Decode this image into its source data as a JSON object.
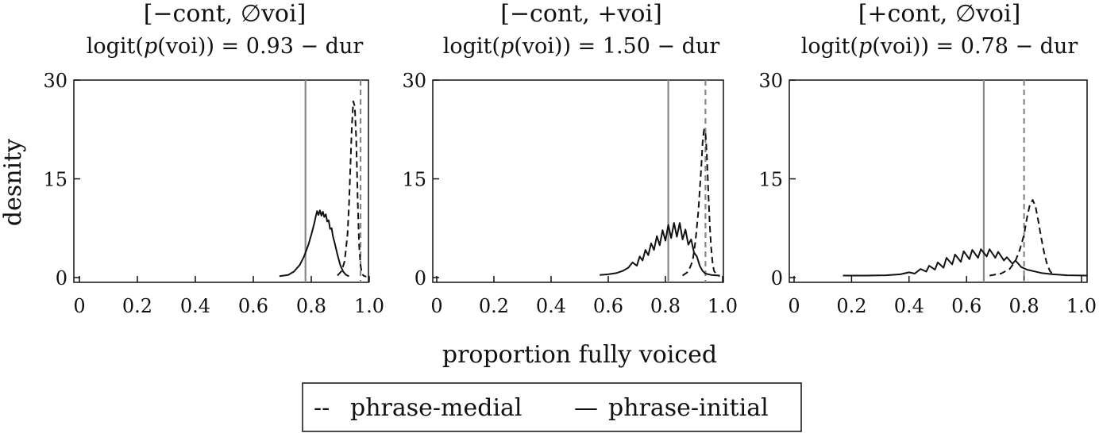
{
  "figure": {
    "ylabel": "desnity",
    "xlabel": "proportion fully voiced",
    "legend": {
      "placement": "bottom-center",
      "items": [
        {
          "symbol": "--",
          "label": "phrase-medial",
          "style": "dashed"
        },
        {
          "symbol": "—",
          "label": "phrase-initial",
          "style": "solid"
        }
      ]
    },
    "colors": {
      "curve": "#111111",
      "dashed_reference_line": "#888888",
      "solid_reference_line": "#888888"
    }
  },
  "chart_data": [
    {
      "type": "line",
      "title": "[−cont, ∅voi]",
      "subtitle": "logit(p(voi)) = 0.93 − dur",
      "subtitle_parts": {
        "lhs": "logit(",
        "p": "p",
        "rest": "(voi)) = 0.93 − dur"
      },
      "xlim": [
        0,
        1.0
      ],
      "ylim": [
        0,
        30
      ],
      "xticks": [
        0,
        0.2,
        0.4,
        0.6,
        0.8,
        1.0
      ],
      "xtick_labels": [
        "0",
        "0.2",
        "0.4",
        "0.6",
        "0.8",
        "1.0"
      ],
      "yticks": [
        0,
        15,
        30
      ],
      "ytick_labels": [
        "0",
        "15",
        "30"
      ],
      "vlines": [
        {
          "x": 0.78,
          "style": "solid",
          "series": "phrase-initial"
        },
        {
          "x": 0.97,
          "style": "dashed",
          "series": "phrase-medial"
        }
      ],
      "series": [
        {
          "name": "phrase-medial",
          "style": "dashed",
          "x": [
            0.89,
            0.905,
            0.915,
            0.925,
            0.93,
            0.935,
            0.94,
            0.945,
            0.95,
            0.955,
            0.96,
            0.965,
            0.97,
            0.975,
            0.98,
            0.985,
            0.99
          ],
          "y": [
            0.3,
            1.0,
            2.5,
            6.5,
            11.0,
            17.0,
            23.0,
            26.8,
            26.0,
            21.0,
            12.0,
            5.0,
            1.8,
            0.6,
            0.3,
            0.2,
            0.15
          ]
        },
        {
          "name": "phrase-initial",
          "style": "solid",
          "x": [
            0.69,
            0.72,
            0.74,
            0.76,
            0.775,
            0.79,
            0.8,
            0.81,
            0.815,
            0.82,
            0.825,
            0.83,
            0.835,
            0.84,
            0.845,
            0.85,
            0.855,
            0.86,
            0.865,
            0.87,
            0.875,
            0.88,
            0.89,
            0.9,
            0.91,
            0.92,
            0.93
          ],
          "y": [
            0.2,
            0.4,
            0.9,
            1.9,
            3.2,
            5.0,
            6.5,
            8.2,
            9.2,
            10.1,
            9.5,
            10.2,
            9.4,
            10.0,
            9.2,
            9.6,
            8.5,
            8.7,
            7.4,
            7.5,
            6.2,
            5.4,
            3.5,
            1.9,
            0.9,
            0.4,
            0.2
          ]
        }
      ]
    },
    {
      "type": "line",
      "title": "[−cont, +voi]",
      "subtitle": "logit(p(voi)) = 1.50 − dur",
      "subtitle_parts": {
        "lhs": "logit(",
        "p": "p",
        "rest": "(voi)) = 1.50 − dur"
      },
      "xlim": [
        0,
        1.0
      ],
      "ylim": [
        0,
        30
      ],
      "xticks": [
        0,
        0.2,
        0.4,
        0.6,
        0.8,
        1.0
      ],
      "xtick_labels": [
        "0",
        "0.2",
        "0.4",
        "0.6",
        "0.8",
        "1.0"
      ],
      "yticks": [
        0,
        15,
        30
      ],
      "ytick_labels": [
        "0",
        "15",
        "30"
      ],
      "vlines": [
        {
          "x": 0.81,
          "style": "solid",
          "series": "phrase-initial"
        },
        {
          "x": 0.94,
          "style": "dashed",
          "series": "phrase-medial"
        }
      ],
      "series": [
        {
          "name": "phrase-medial",
          "style": "dashed",
          "x": [
            0.86,
            0.88,
            0.895,
            0.905,
            0.915,
            0.925,
            0.93,
            0.935,
            0.94,
            0.945,
            0.95,
            0.955,
            0.96,
            0.965,
            0.97,
            0.98,
            0.99
          ],
          "y": [
            0.3,
            0.9,
            2.5,
            5.5,
            10.0,
            16.5,
            20.5,
            22.5,
            22.0,
            18.5,
            13.0,
            8.0,
            4.5,
            2.2,
            1.0,
            0.4,
            0.2
          ]
        },
        {
          "name": "phrase-initial",
          "style": "solid",
          "x": [
            0.57,
            0.6,
            0.63,
            0.65,
            0.67,
            0.685,
            0.7,
            0.71,
            0.72,
            0.73,
            0.74,
            0.75,
            0.76,
            0.77,
            0.78,
            0.79,
            0.8,
            0.81,
            0.82,
            0.83,
            0.84,
            0.85,
            0.86,
            0.87,
            0.88,
            0.89,
            0.9,
            0.91,
            0.92,
            0.93,
            0.94,
            0.96,
            0.99
          ],
          "y": [
            0.4,
            0.5,
            0.7,
            1.0,
            1.5,
            2.3,
            1.8,
            3.2,
            2.6,
            4.2,
            3.4,
            5.2,
            4.2,
            6.3,
            4.9,
            7.2,
            5.6,
            8.0,
            6.0,
            8.3,
            6.2,
            8.3,
            5.8,
            7.3,
            5.0,
            5.8,
            3.8,
            3.2,
            1.8,
            1.0,
            0.6,
            0.4,
            0.3
          ]
        }
      ]
    },
    {
      "type": "line",
      "title": "[+cont, ∅voi]",
      "subtitle": "logit(p(voi)) = 0.78 − dur",
      "subtitle_parts": {
        "lhs": "logit(",
        "p": "p",
        "rest": "(voi)) = 0.78 − dur"
      },
      "xlim": [
        0,
        1.0
      ],
      "ylim": [
        0,
        30
      ],
      "xticks": [
        0,
        0.2,
        0.4,
        0.6,
        0.8,
        1.0
      ],
      "xtick_labels": [
        "0",
        "0.2",
        "0.4",
        "0.6",
        "0.8",
        "1.0"
      ],
      "yticks": [
        0,
        15,
        30
      ],
      "ytick_labels": [
        "0",
        "15",
        "30"
      ],
      "vlines": [
        {
          "x": 0.66,
          "style": "solid",
          "series": "phrase-initial"
        },
        {
          "x": 0.8,
          "style": "dashed",
          "series": "phrase-medial"
        }
      ],
      "series": [
        {
          "name": "phrase-medial",
          "style": "dashed",
          "x": [
            0.68,
            0.72,
            0.75,
            0.77,
            0.785,
            0.8,
            0.81,
            0.82,
            0.83,
            0.84,
            0.85,
            0.86,
            0.87,
            0.88,
            0.89,
            0.9
          ],
          "y": [
            0.3,
            0.6,
            1.3,
            2.5,
            4.2,
            6.5,
            9.0,
            11.0,
            11.8,
            10.8,
            8.5,
            6.0,
            3.8,
            2.0,
            1.0,
            0.5
          ]
        },
        {
          "name": "phrase-initial",
          "style": "solid",
          "x": [
            0.17,
            0.25,
            0.32,
            0.37,
            0.4,
            0.42,
            0.44,
            0.46,
            0.47,
            0.49,
            0.5,
            0.52,
            0.53,
            0.55,
            0.56,
            0.58,
            0.59,
            0.61,
            0.62,
            0.64,
            0.65,
            0.67,
            0.68,
            0.7,
            0.71,
            0.73,
            0.74,
            0.76,
            0.77,
            0.79,
            0.81,
            0.83,
            0.86,
            0.9,
            0.95,
            1.02
          ],
          "y": [
            0.3,
            0.3,
            0.35,
            0.5,
            0.8,
            0.6,
            1.3,
            0.9,
            1.8,
            1.2,
            2.3,
            1.5,
            3.0,
            2.0,
            3.5,
            2.4,
            4.0,
            2.8,
            4.2,
            3.0,
            4.3,
            3.2,
            4.3,
            3.0,
            3.9,
            2.6,
            3.1,
            2.1,
            2.6,
            1.6,
            1.2,
            1.0,
            0.7,
            0.5,
            0.35,
            0.3
          ]
        }
      ]
    }
  ]
}
